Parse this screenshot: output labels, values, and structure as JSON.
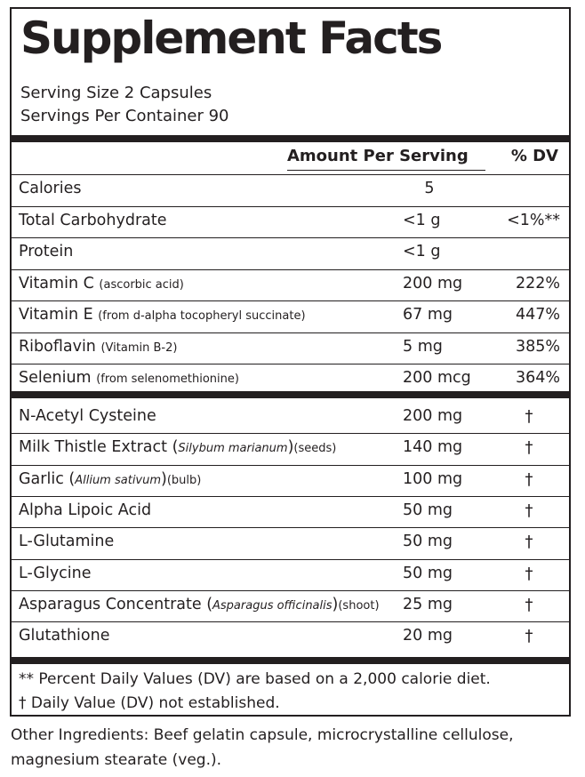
{
  "title": "Supplement Facts",
  "serving_size": "Serving Size 2 Capsules",
  "servings_per_container": "Servings Per Container 90",
  "header": {
    "amount": "Amount Per Serving",
    "dv": "% DV"
  },
  "nutrients": [
    {
      "name": "Calories",
      "qualifier": "",
      "amount": "5",
      "dv": ""
    },
    {
      "name": "Total Carbohydrate",
      "qualifier": "",
      "amount": "<1 g",
      "dv": "<1%**"
    },
    {
      "name": "Protein",
      "qualifier": "",
      "amount": "<1 g",
      "dv": ""
    },
    {
      "name": "Vitamin C",
      "qualifier": "(ascorbic acid)",
      "amount": "200 mg",
      "dv": "222%"
    },
    {
      "name": "Vitamin E",
      "qualifier": "(from d-alpha tocopheryl succinate)",
      "amount": "67 mg",
      "dv": "447%"
    },
    {
      "name": "Riboflavin",
      "qualifier": "(Vitamin B-2)",
      "amount": "5 mg",
      "dv": "385%"
    },
    {
      "name": "Selenium",
      "qualifier": "(from selenomethionine)",
      "amount": "200 mcg",
      "dv": "364%"
    }
  ],
  "other_ingredients_rows": [
    {
      "name": "N-Acetyl Cysteine",
      "latin": "",
      "part": "",
      "amount": "200 mg",
      "dv": "†"
    },
    {
      "name": "Milk Thistle Extract",
      "latin": "Silybum marianum",
      "part": "(seeds)",
      "amount": "140 mg",
      "dv": "†"
    },
    {
      "name": "Garlic",
      "latin": "Allium sativum",
      "part": "(bulb)",
      "amount": "100 mg",
      "dv": "†"
    },
    {
      "name": "Alpha Lipoic Acid",
      "latin": "",
      "part": "",
      "amount": "50 mg",
      "dv": "†"
    },
    {
      "name": "L-Glutamine",
      "latin": "",
      "part": "",
      "amount": "50 mg",
      "dv": "†"
    },
    {
      "name": "L-Glycine",
      "latin": "",
      "part": "",
      "amount": "50 mg",
      "dv": "†"
    },
    {
      "name": "Asparagus Concentrate",
      "latin": "Asparagus officinalis",
      "part": "(shoot)",
      "amount": "25 mg",
      "dv": "†"
    },
    {
      "name": "Glutathione",
      "latin": "",
      "part": "",
      "amount": "20 mg",
      "dv": "†"
    }
  ],
  "footnotes": [
    "** Percent Daily Values (DV) are based on a 2,000 calorie diet.",
    "† Daily Value (DV) not established."
  ],
  "other_ingredients": "Other Ingredients: Beef gelatin capsule, microcrystalline cellulose, magnesium stearate (veg.)."
}
